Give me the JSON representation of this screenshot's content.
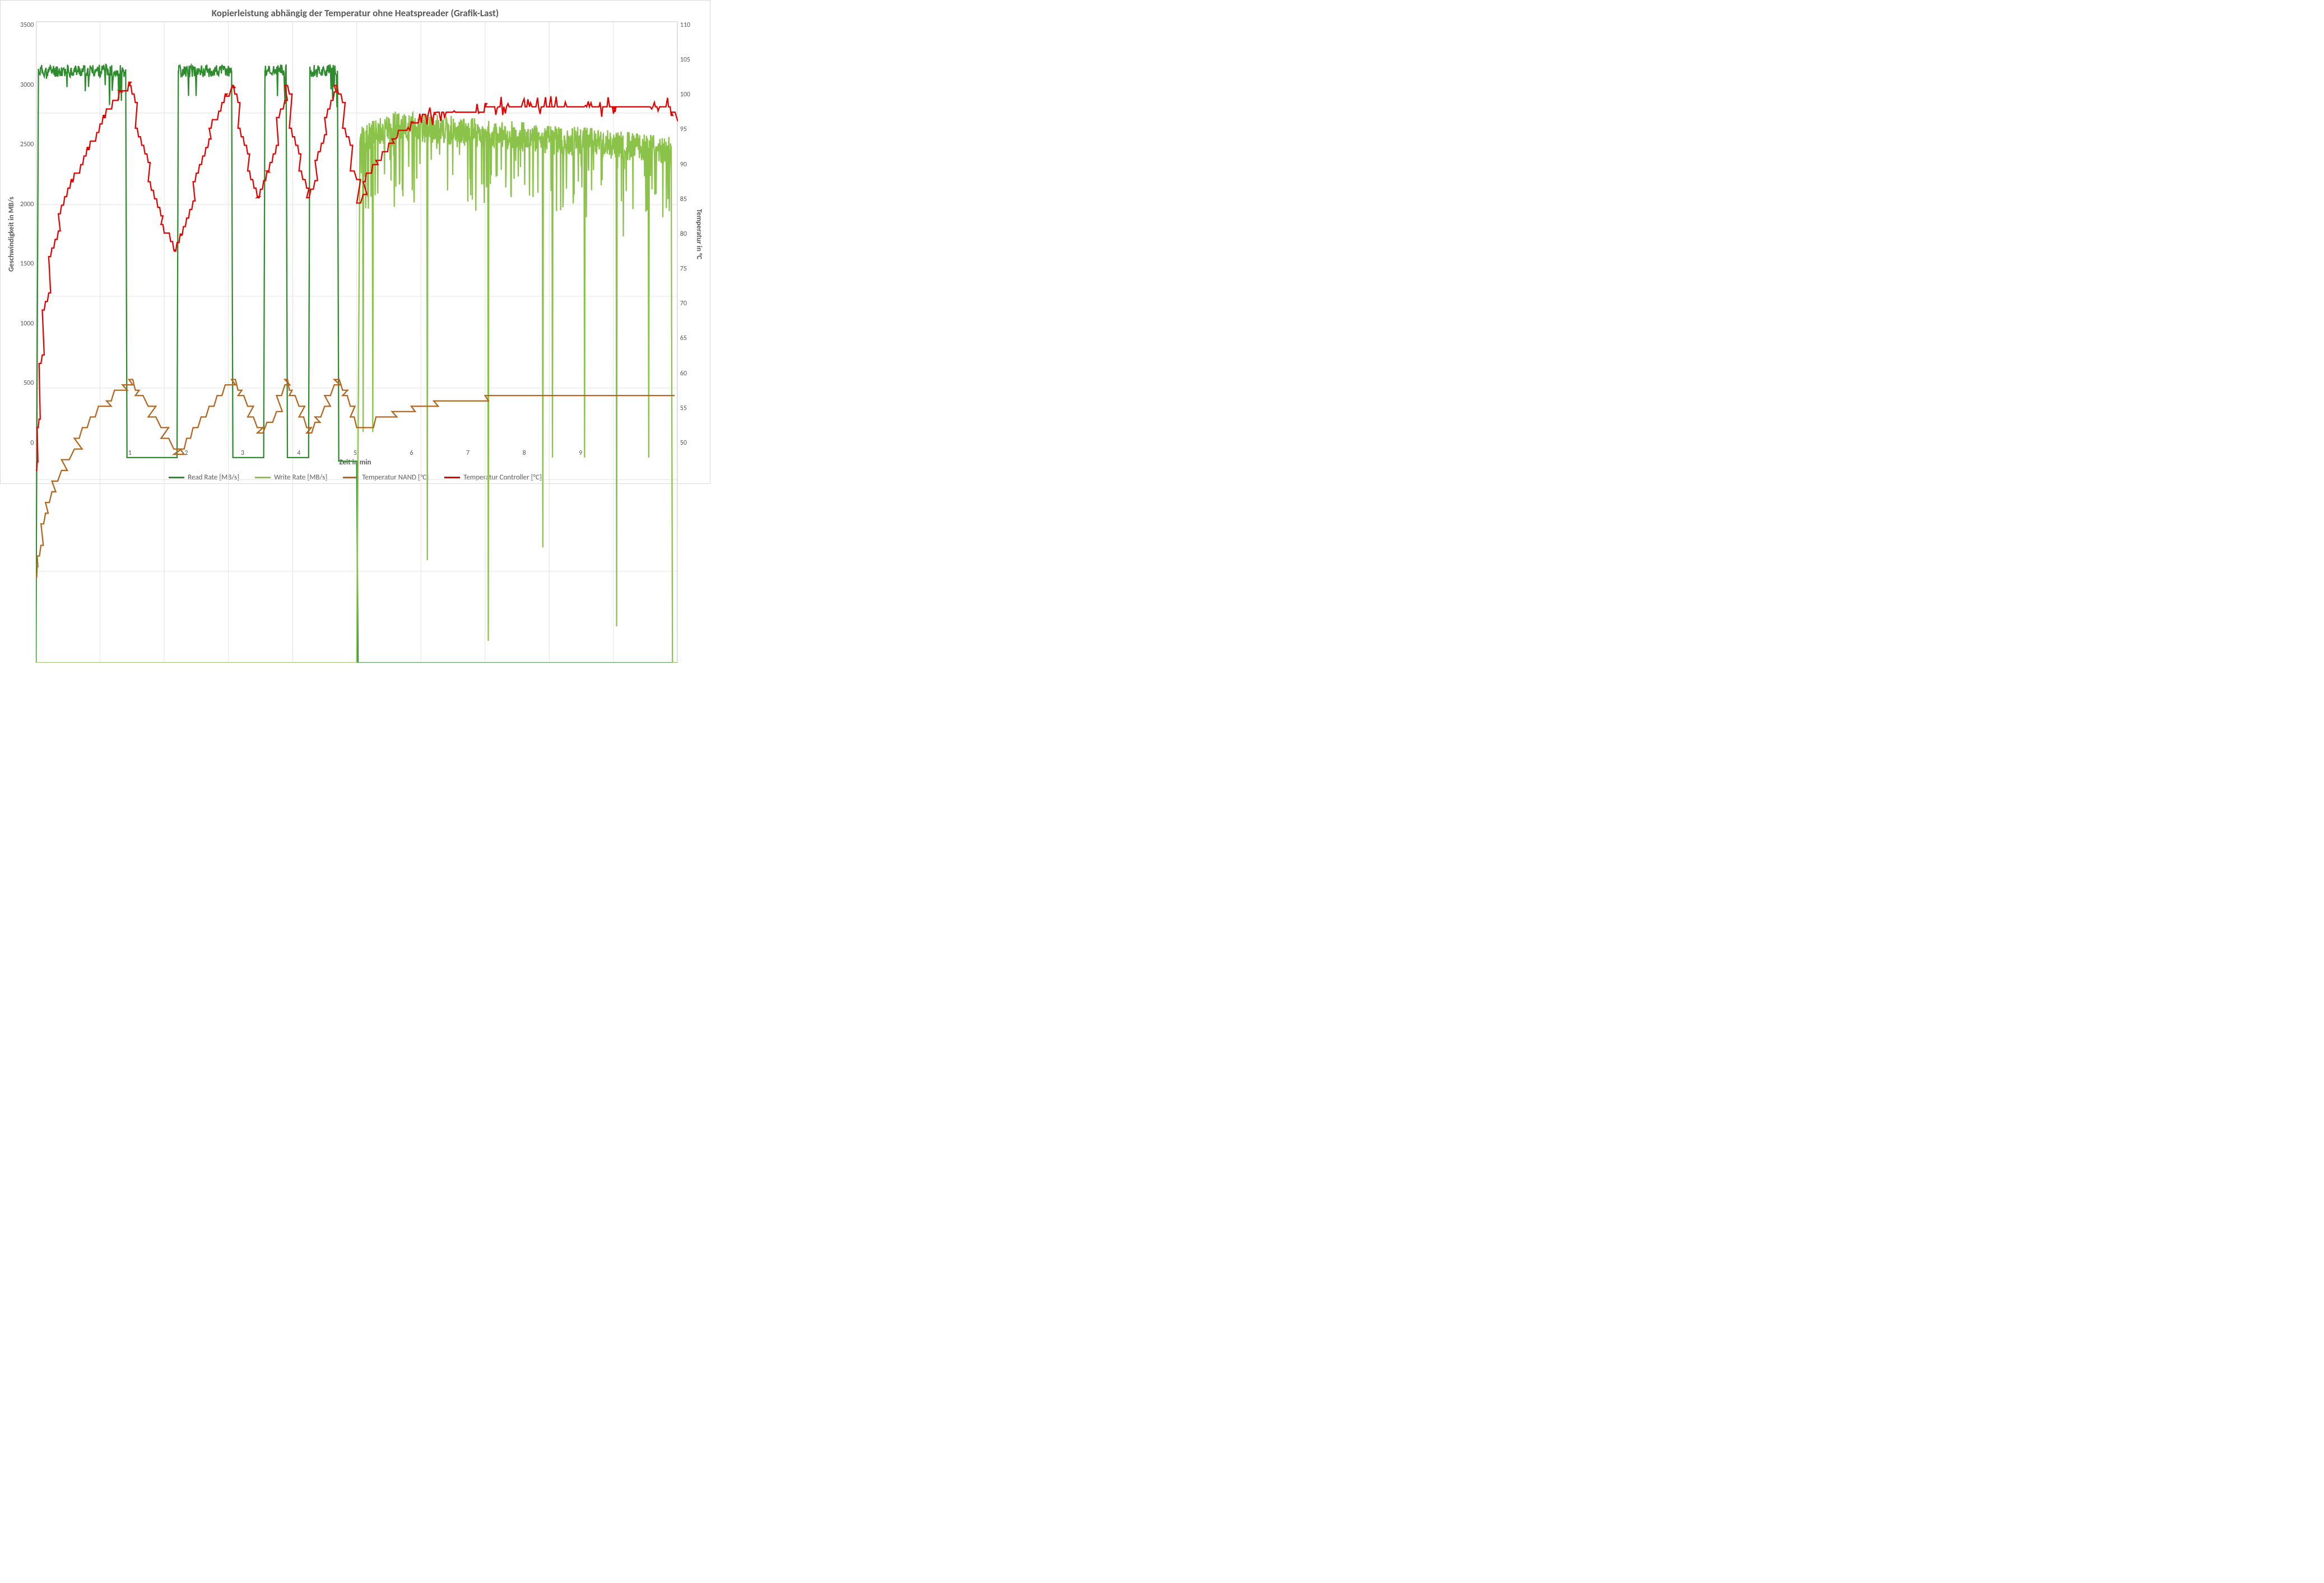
{
  "chart": {
    "type": "line-dual-axis",
    "title": "Kopierleistung abhängig der Temperatur ohne Heatspreader (Grafik-Last)",
    "title_fontsize": 17,
    "xlabel": "Zeit in min",
    "ylabel_left": "Geschwindigkeit in MB/s",
    "ylabel_right": "Temperatur in °C",
    "label_fontsize": 13,
    "tick_fontsize": 12,
    "background_color": "#ffffff",
    "plot_border_color": "#d9d9d9",
    "grid_color": "#e6e6e6",
    "x": {
      "min": 0,
      "max": 10,
      "tick_step": 1,
      "tick_labels": [
        "",
        "1",
        "2",
        "3",
        "4",
        "5",
        "6",
        "7",
        "8",
        "9",
        ""
      ]
    },
    "y_left": {
      "min": 0,
      "max": 3500,
      "tick_step": 500
    },
    "y_right": {
      "min": 50,
      "max": 110,
      "tick_step": 5
    },
    "legend": {
      "position": "bottom-center",
      "items": [
        {
          "label": "Read Rate [MB/s]",
          "color": "#2e8b2e"
        },
        {
          "label": "Write Rate [MB/s]",
          "color": "#8bc34a"
        },
        {
          "label": "Temperatur NAND [°C]",
          "color": "#b5651d"
        },
        {
          "label": "Temperatur Controller [°C]",
          "color": "#e60000"
        }
      ]
    },
    "series_line_width": 2,
    "series": {
      "read_rate": {
        "axis": "left",
        "color": "#2e8b2e",
        "noise_amp": 35,
        "noise_dip_amp": 120,
        "noise_dip_prob": 0.05,
        "segments": [
          {
            "x0": 0.0,
            "x1": 0.04,
            "y0": 0,
            "y1": 3230
          },
          {
            "x0": 0.04,
            "x1": 1.4,
            "y0": 3230,
            "y1": 3230,
            "high_noise": true
          },
          {
            "x0": 1.4,
            "x1": 1.42,
            "y0": 3230,
            "y1": 1120
          },
          {
            "x0": 1.42,
            "x1": 2.2,
            "y0": 1120,
            "y1": 1120
          },
          {
            "x0": 2.2,
            "x1": 2.22,
            "y0": 1120,
            "y1": 3230
          },
          {
            "x0": 2.22,
            "x1": 3.05,
            "y0": 3230,
            "y1": 3230,
            "high_noise": true
          },
          {
            "x0": 3.05,
            "x1": 3.07,
            "y0": 3230,
            "y1": 1120
          },
          {
            "x0": 3.07,
            "x1": 3.55,
            "y0": 1120,
            "y1": 1120
          },
          {
            "x0": 3.55,
            "x1": 3.57,
            "y0": 1120,
            "y1": 3230
          },
          {
            "x0": 3.57,
            "x1": 3.9,
            "y0": 3230,
            "y1": 3230,
            "high_noise": true
          },
          {
            "x0": 3.9,
            "x1": 3.92,
            "y0": 3230,
            "y1": 1120
          },
          {
            "x0": 3.92,
            "x1": 4.25,
            "y0": 1120,
            "y1": 1120
          },
          {
            "x0": 4.25,
            "x1": 4.27,
            "y0": 1120,
            "y1": 3230
          },
          {
            "x0": 4.27,
            "x1": 4.7,
            "y0": 3230,
            "y1": 3230,
            "high_noise": true
          },
          {
            "x0": 4.7,
            "x1": 4.72,
            "y0": 3230,
            "y1": 1100
          },
          {
            "x0": 4.72,
            "x1": 5.0,
            "y0": 1100,
            "y1": 1100
          },
          {
            "x0": 5.0,
            "x1": 5.02,
            "y0": 1100,
            "y1": 0
          },
          {
            "x0": 5.02,
            "x1": 10.0,
            "y0": 0,
            "y1": 0
          }
        ]
      },
      "write_rate": {
        "axis": "left",
        "color": "#8bc34a",
        "noise_amp": 80,
        "noise_dip_amp": 350,
        "segments": [
          {
            "x0": 0.0,
            "x1": 5.0,
            "y0": 0,
            "y1": 0
          },
          {
            "x0": 5.0,
            "x1": 5.05,
            "y0": 0,
            "y1": 2850
          },
          {
            "x0": 5.05,
            "x1": 5.6,
            "y0": 2850,
            "y1": 2930,
            "high_noise": true
          },
          {
            "x0": 5.6,
            "x1": 9.9,
            "y0": 2930,
            "y1": 2800,
            "high_noise": true
          },
          {
            "x0": 9.9,
            "x1": 9.92,
            "y0": 2800,
            "y1": 0
          },
          {
            "x0": 9.92,
            "x1": 10.0,
            "y0": 0,
            "y1": 0
          }
        ],
        "deep_dips": [
          {
            "x": 5.1,
            "y": 1260
          },
          {
            "x": 5.25,
            "y": 1260
          },
          {
            "x": 6.1,
            "y": 560
          },
          {
            "x": 7.05,
            "y": 120
          },
          {
            "x": 7.9,
            "y": 630
          },
          {
            "x": 8.05,
            "y": 1120
          },
          {
            "x": 8.55,
            "y": 1120
          },
          {
            "x": 9.05,
            "y": 200
          },
          {
            "x": 9.55,
            "y": 1120
          }
        ]
      },
      "temp_nand": {
        "axis": "right",
        "color": "#b5651d",
        "step_height": 1,
        "step_width": 0.08,
        "points": [
          [
            0.0,
            58
          ],
          [
            0.02,
            60
          ],
          [
            0.08,
            63
          ],
          [
            0.15,
            65
          ],
          [
            0.25,
            67
          ],
          [
            0.4,
            69
          ],
          [
            0.6,
            71
          ],
          [
            0.85,
            73
          ],
          [
            1.1,
            74.5
          ],
          [
            1.35,
            76
          ],
          [
            1.45,
            76.5
          ],
          [
            1.55,
            75
          ],
          [
            1.75,
            73
          ],
          [
            1.95,
            71
          ],
          [
            2.15,
            69.5
          ],
          [
            2.25,
            70
          ],
          [
            2.45,
            72
          ],
          [
            2.7,
            74
          ],
          [
            2.95,
            76
          ],
          [
            3.05,
            76.5
          ],
          [
            3.15,
            75
          ],
          [
            3.3,
            73
          ],
          [
            3.45,
            71.5
          ],
          [
            3.6,
            72.5
          ],
          [
            3.75,
            75
          ],
          [
            3.88,
            76.5
          ],
          [
            3.95,
            75
          ],
          [
            4.1,
            73
          ],
          [
            4.22,
            71.5
          ],
          [
            4.35,
            73
          ],
          [
            4.5,
            75
          ],
          [
            4.65,
            76.5
          ],
          [
            4.78,
            75
          ],
          [
            4.9,
            73
          ],
          [
            5.0,
            72
          ],
          [
            5.1,
            72
          ],
          [
            5.3,
            73
          ],
          [
            5.55,
            73.5
          ],
          [
            5.85,
            74
          ],
          [
            6.2,
            74.5
          ],
          [
            7.0,
            75
          ],
          [
            8.0,
            75
          ],
          [
            9.0,
            75
          ],
          [
            9.9,
            74.5
          ]
        ]
      },
      "temp_controller": {
        "axis": "right",
        "color": "#e60000",
        "step_height": 0.8,
        "step_width": 0.04,
        "points": [
          [
            0.0,
            68
          ],
          [
            0.02,
            72
          ],
          [
            0.05,
            78
          ],
          [
            0.1,
            83
          ],
          [
            0.2,
            88
          ],
          [
            0.35,
            92
          ],
          [
            0.55,
            95
          ],
          [
            0.8,
            98
          ],
          [
            1.05,
            101
          ],
          [
            1.3,
            103.5
          ],
          [
            1.45,
            104
          ],
          [
            1.55,
            100
          ],
          [
            1.75,
            95
          ],
          [
            1.95,
            91
          ],
          [
            2.15,
            88.5
          ],
          [
            2.25,
            90
          ],
          [
            2.45,
            95
          ],
          [
            2.7,
            100
          ],
          [
            2.95,
            103
          ],
          [
            3.05,
            104
          ],
          [
            3.15,
            100
          ],
          [
            3.3,
            96
          ],
          [
            3.45,
            93.5
          ],
          [
            3.6,
            96
          ],
          [
            3.75,
            101
          ],
          [
            3.88,
            104
          ],
          [
            3.95,
            100
          ],
          [
            4.1,
            96
          ],
          [
            4.22,
            93.5
          ],
          [
            4.35,
            97
          ],
          [
            4.5,
            101
          ],
          [
            4.65,
            104
          ],
          [
            4.78,
            100
          ],
          [
            4.9,
            96
          ],
          [
            5.0,
            93
          ],
          [
            5.1,
            95
          ],
          [
            5.3,
            97
          ],
          [
            5.55,
            99
          ],
          [
            5.85,
            100.5
          ],
          [
            6.2,
            101.5
          ],
          [
            7.0,
            102
          ],
          [
            8.0,
            102
          ],
          [
            9.0,
            102
          ],
          [
            9.9,
            101.5
          ],
          [
            10.0,
            99
          ]
        ],
        "flutter": [
          {
            "x0": 5.6,
            "x1": 10.0,
            "base": 102,
            "amp": 1.0
          }
        ]
      }
    }
  }
}
